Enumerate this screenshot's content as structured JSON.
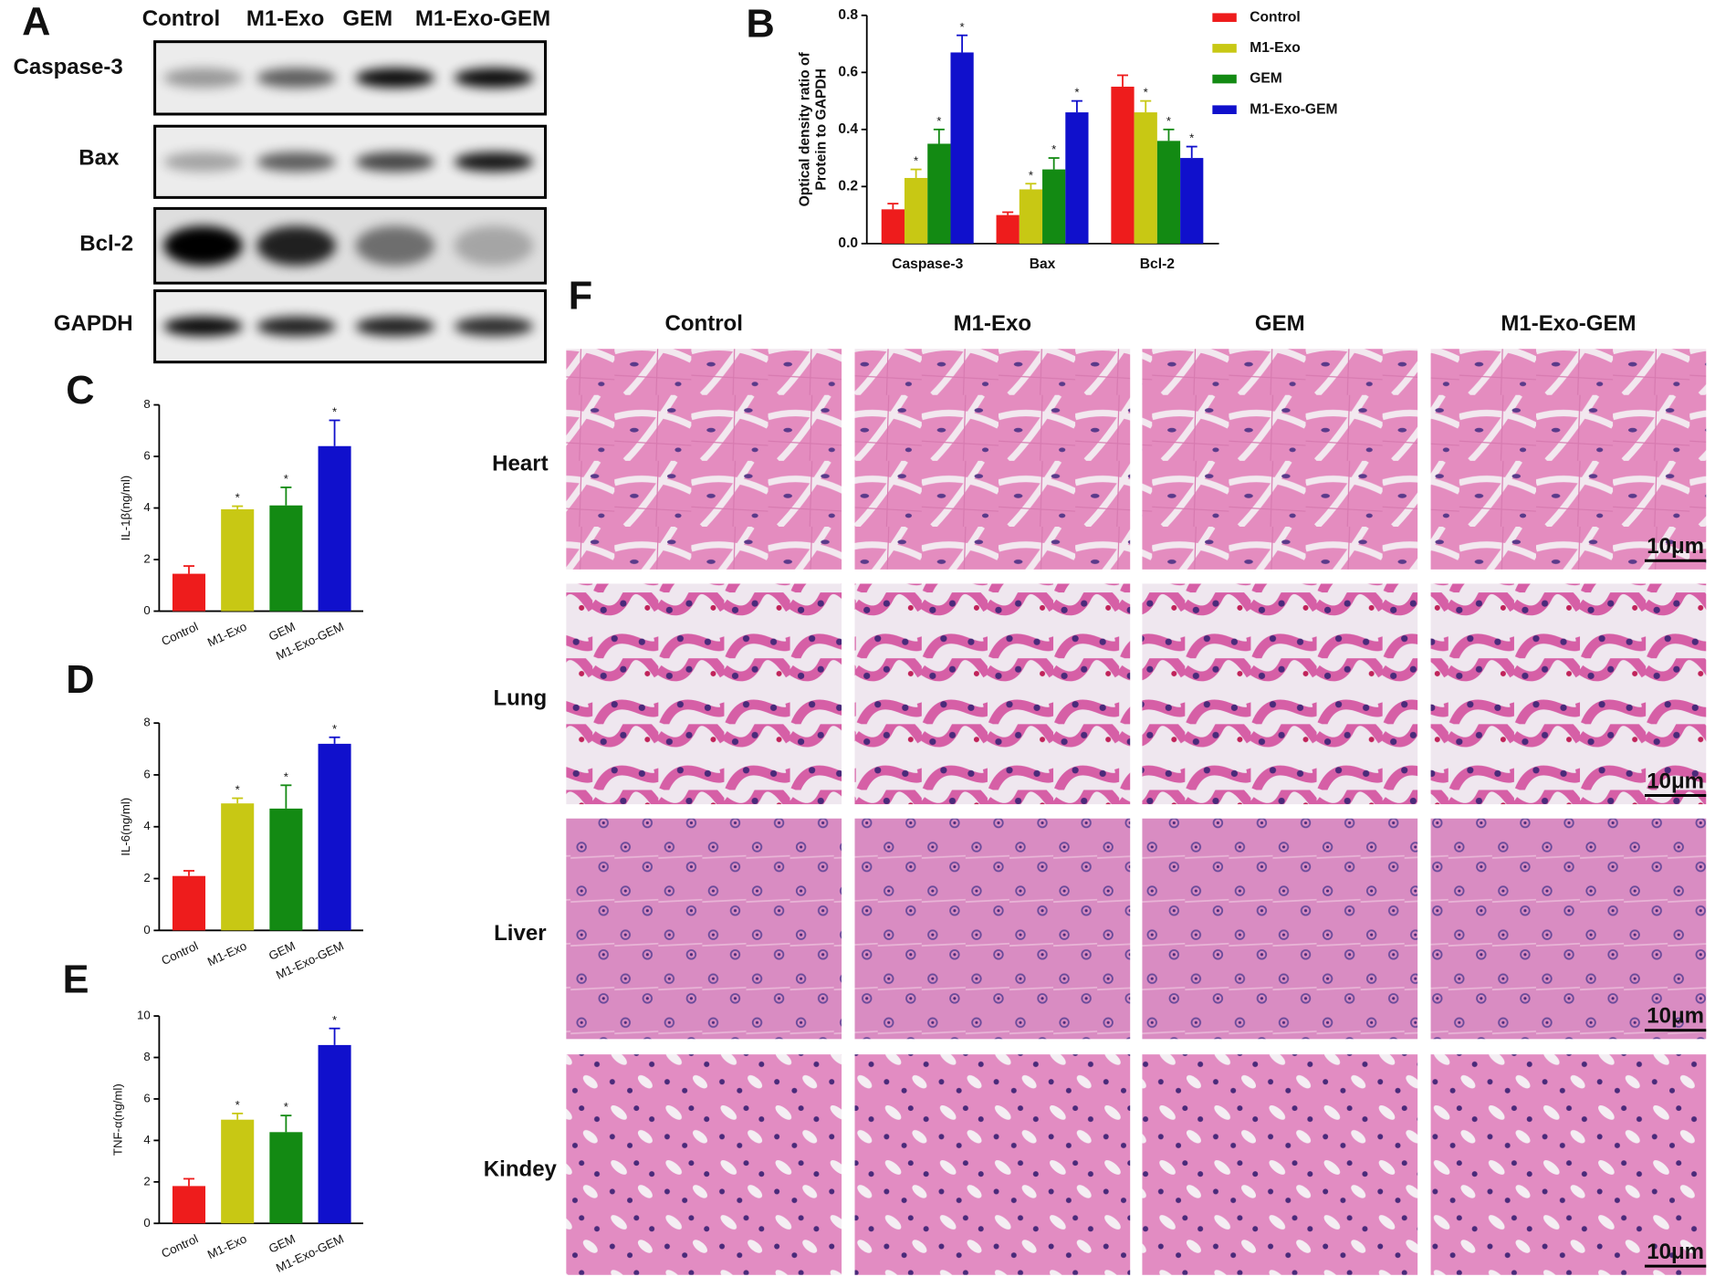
{
  "panel_labels": [
    "A",
    "B",
    "C",
    "D",
    "E",
    "F"
  ],
  "western_blot": {
    "lanes": [
      "Control",
      "M1-Exo",
      "GEM",
      "M1-Exo-GEM"
    ],
    "proteins": [
      "Caspase-3",
      "Bax",
      "Bcl-2",
      "GAPDH"
    ]
  },
  "chart_data": [
    {
      "type": "bar",
      "ylabel": [
        "Optical density ratio of",
        "Protein to GAPDH"
      ],
      "categories": [
        "Caspase-3",
        "Bax",
        "Bcl-2"
      ],
      "series": [
        {
          "name": "Control",
          "color": "#ee1c1c",
          "values": [
            0.12,
            0.1,
            0.55
          ],
          "errors": [
            0.02,
            0.01,
            0.04
          ],
          "annotations": [
            null,
            null,
            null
          ]
        },
        {
          "name": "M1-Exo",
          "color": "#c8c814",
          "values": [
            0.23,
            0.19,
            0.46
          ],
          "errors": [
            0.03,
            0.02,
            0.04
          ],
          "annotations": [
            "*",
            "*",
            "*"
          ]
        },
        {
          "name": "GEM",
          "color": "#138a13",
          "values": [
            0.35,
            0.26,
            0.36
          ],
          "errors": [
            0.05,
            0.04,
            0.04
          ],
          "annotations": [
            "*",
            "*",
            "*"
          ]
        },
        {
          "name": "M1-Exo-GEM",
          "color": "#1010cc",
          "values": [
            0.67,
            0.46,
            0.3
          ],
          "errors": [
            0.06,
            0.04,
            0.04
          ],
          "annotations": [
            "*",
            "*",
            "*"
          ]
        }
      ],
      "ylim": [
        0,
        0.8
      ],
      "yticks": [
        {
          "value": 0,
          "label": "0.0"
        },
        0.2,
        0.4,
        0.6,
        0.8
      ],
      "legend": "upper right"
    },
    {
      "type": "bar",
      "ylabel": "IL-1β(ng/ml)",
      "categories": [
        "Control",
        "M1-Exo",
        "GEM",
        "M1-Exo-GEM"
      ],
      "colors": [
        "#ee1c1c",
        "#c8c814",
        "#138a13",
        "#1010cc"
      ],
      "values": [
        1.45,
        3.95,
        4.1,
        6.4
      ],
      "errors": [
        0.3,
        0.12,
        0.7,
        1.0
      ],
      "annotations": [
        null,
        "*",
        "*",
        "*"
      ],
      "ylim": [
        0,
        8
      ],
      "yticks": [
        0,
        2,
        4,
        6,
        8
      ]
    },
    {
      "type": "bar",
      "ylabel": "IL-6(ng/ml)",
      "categories": [
        "Control",
        "M1-Exo",
        "GEM",
        "M1-Exo-GEM"
      ],
      "colors": [
        "#ee1c1c",
        "#c8c814",
        "#138a13",
        "#1010cc"
      ],
      "values": [
        2.1,
        4.9,
        4.7,
        7.2
      ],
      "errors": [
        0.2,
        0.2,
        0.9,
        0.25
      ],
      "annotations": [
        null,
        "*",
        "*",
        "*"
      ],
      "ylim": [
        0,
        8
      ],
      "yticks": [
        0,
        2,
        4,
        6,
        8
      ]
    },
    {
      "type": "bar",
      "ylabel": "TNF-α(ng/ml)",
      "categories": [
        "Control",
        "M1-Exo",
        "GEM",
        "M1-Exo-GEM"
      ],
      "colors": [
        "#ee1c1c",
        "#c8c814",
        "#138a13",
        "#1010cc"
      ],
      "values": [
        1.8,
        5.0,
        4.4,
        8.6
      ],
      "errors": [
        0.35,
        0.3,
        0.8,
        0.8
      ],
      "annotations": [
        null,
        "*",
        "*",
        "*"
      ],
      "ylim": [
        0,
        10
      ],
      "yticks": [
        0,
        2,
        4,
        6,
        8,
        10
      ]
    }
  ],
  "histology": {
    "columns": [
      "Control",
      "M1-Exo",
      "GEM",
      "M1-Exo-GEM"
    ],
    "rows": [
      "Heart",
      "Lung",
      "Liver",
      "Kindey"
    ],
    "scale_bar": "10μm"
  }
}
